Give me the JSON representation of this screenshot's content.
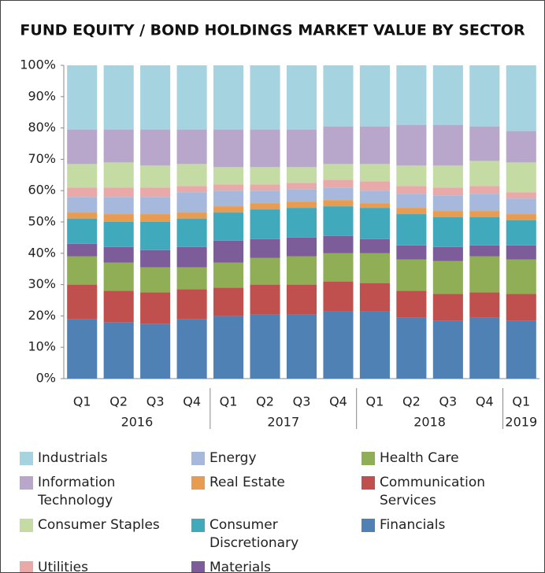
{
  "chart_data": {
    "type": "stacked_bar",
    "title": "FUND EQUITY / BOND HOLDINGS MARKET VALUE BY SECTOR",
    "categories": [
      "Q1",
      "Q2",
      "Q3",
      "Q4",
      "Q1",
      "Q2",
      "Q3",
      "Q4",
      "Q1",
      "Q2",
      "Q3",
      "Q4",
      "Q1"
    ],
    "groups": [
      {
        "label": "2016",
        "span": 4
      },
      {
        "label": "2017",
        "span": 4
      },
      {
        "label": "2018",
        "span": 4
      },
      {
        "label": "2019",
        "span": 1
      }
    ],
    "ylim": [
      0,
      100
    ],
    "yticks": [
      {
        "value": 0,
        "label": "0%"
      },
      {
        "value": 10,
        "label": "10%"
      },
      {
        "value": 20,
        "label": "20%"
      },
      {
        "value": 30,
        "label": "30%"
      },
      {
        "value": 40,
        "label": "40%"
      },
      {
        "value": 50,
        "label": "50%"
      },
      {
        "value": 60,
        "label": "60%"
      },
      {
        "value": 70,
        "label": "70%"
      },
      {
        "value": 80,
        "label": "80%"
      },
      {
        "value": 90,
        "label": "90%"
      },
      {
        "value": 100,
        "label": "100%"
      }
    ],
    "grid": false,
    "series": [
      {
        "name": "Financials",
        "color": "#4f81b5",
        "values": [
          19,
          18,
          17.5,
          19,
          20,
          20.5,
          20.5,
          21.5,
          21.5,
          19.5,
          18.5,
          19.5,
          18.5
        ]
      },
      {
        "name": "Communication Services",
        "color": "#c0504d",
        "values": [
          11,
          10,
          10,
          9.5,
          9,
          9.5,
          9.5,
          9.5,
          9,
          8.5,
          8.5,
          8,
          8.5
        ]
      },
      {
        "name": "Health Care",
        "color": "#8fae55",
        "values": [
          9,
          9,
          8,
          7,
          8,
          8.5,
          9,
          9,
          9.5,
          10,
          10.5,
          11.5,
          11
        ]
      },
      {
        "name": "Materials",
        "color": "#7c5c99",
        "values": [
          4,
          5,
          5.5,
          6.5,
          7,
          6,
          6,
          5.5,
          4.5,
          4.5,
          4.5,
          3.5,
          4.5
        ]
      },
      {
        "name": "Consumer Discretionary",
        "color": "#41a9bc",
        "values": [
          8,
          8,
          9,
          9,
          9,
          9.5,
          9.5,
          9.5,
          10,
          10,
          9.5,
          9,
          8
        ]
      },
      {
        "name": "Real Estate",
        "color": "#e89c52",
        "values": [
          2,
          2.5,
          2.5,
          2,
          2,
          2,
          2,
          2,
          1.5,
          2,
          2,
          2,
          2
        ]
      },
      {
        "name": "Energy",
        "color": "#a6b8dc",
        "values": [
          5,
          5.5,
          5.5,
          6.5,
          5,
          4,
          4,
          4,
          4,
          4.5,
          5,
          5.5,
          5
        ]
      },
      {
        "name": "Utilities",
        "color": "#e8a9a8",
        "values": [
          3,
          3,
          3,
          2,
          2,
          2,
          2,
          2.5,
          3,
          2.5,
          2.5,
          2.5,
          2
        ]
      },
      {
        "name": "Consumer Staples",
        "color": "#c5dba4",
        "values": [
          7.5,
          8,
          7,
          7,
          5.5,
          5.5,
          5,
          5,
          5.5,
          6.5,
          7,
          8,
          9.5
        ]
      },
      {
        "name": "Information Technology",
        "color": "#b8a7cb",
        "values": [
          11,
          10.5,
          11.5,
          11,
          12,
          12,
          12,
          12,
          12,
          13,
          13,
          11,
          10
        ]
      },
      {
        "name": "Industrials",
        "color": "#a6d3e0",
        "values": [
          20.5,
          20.5,
          20.5,
          20.5,
          20.5,
          20.5,
          20.5,
          19.5,
          19.5,
          19,
          19,
          19.5,
          21
        ]
      }
    ]
  }
}
